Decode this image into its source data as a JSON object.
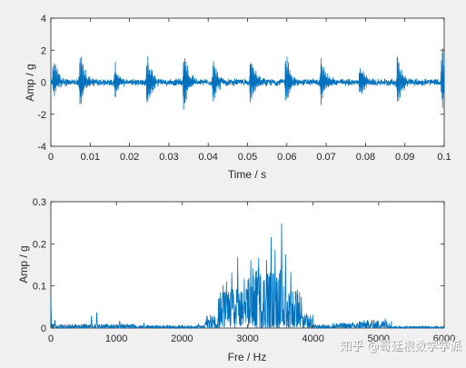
{
  "watermark": "知乎 @哥廷根数学学派",
  "colors": {
    "line": "#0072bd",
    "axis": "#262626",
    "plot_bg": "#ffffff",
    "figure_bg": "#f0f0f0"
  },
  "chart_data": [
    {
      "type": "line",
      "xlabel": "Time / s",
      "ylabel": "Amp / g",
      "xlim": [
        0,
        0.1
      ],
      "ylim": [
        -4,
        4
      ],
      "xticks": [
        0,
        0.01,
        0.02,
        0.03,
        0.04,
        0.05,
        0.06,
        0.07,
        0.08,
        0.09,
        0.1
      ],
      "xtick_labels": [
        "0",
        "0.01",
        "0.02",
        "0.03",
        "0.04",
        "0.05",
        "0.06",
        "0.07",
        "0.08",
        "0.09",
        "0.1"
      ],
      "yticks": [
        -4,
        -2,
        0,
        2,
        4
      ],
      "ytick_labels": [
        "-4",
        "-2",
        "0",
        "2",
        "4"
      ],
      "grid": false,
      "series": [
        {
          "impulse_times": [
            0.0007,
            0.0074,
            0.0163,
            0.0245,
            0.0338,
            0.0413,
            0.0508,
            0.0597,
            0.0687,
            0.0786,
            0.0881,
            0.0995
          ],
          "impulse_peaks": [
            2.2,
            2.6,
            1.4,
            2.4,
            2.5,
            2.0,
            2.3,
            2.3,
            2.1,
            1.5,
            2.1,
            3.0
          ],
          "impulse_troughs": [
            -1.0,
            -1.8,
            -1.2,
            -2.1,
            -2.0,
            -1.5,
            -1.9,
            -1.9,
            -1.7,
            -1.2,
            -1.7,
            -2.2
          ],
          "baseline_amplitude": 0.25
        }
      ]
    },
    {
      "type": "line",
      "xlabel": "Fre / Hz",
      "ylabel": "Amp / g",
      "xlim": [
        0,
        6000
      ],
      "ylim": [
        0,
        0.3
      ],
      "xticks": [
        0,
        1000,
        2000,
        3000,
        4000,
        5000,
        6000
      ],
      "xtick_labels": [
        "0",
        "1000",
        "2000",
        "3000",
        "4000",
        "5000",
        "6000"
      ],
      "yticks": [
        0,
        0.1,
        0.2,
        0.3
      ],
      "ytick_labels": [
        "0",
        "0.1",
        "0.2",
        "0.3"
      ],
      "grid": false,
      "series": [
        {
          "peaks": [
            [
              0,
              0.08
            ],
            [
              60,
              0.02
            ],
            [
              620,
              0.03
            ],
            [
              700,
              0.04
            ],
            [
              1050,
              0.02
            ],
            [
              1420,
              0.012
            ],
            [
              2250,
              0.012
            ],
            [
              2480,
              0.03
            ],
            [
              2630,
              0.11
            ],
            [
              2680,
              0.12
            ],
            [
              2760,
              0.15
            ],
            [
              2850,
              0.19
            ],
            [
              2950,
              0.12
            ],
            [
              3050,
              0.17
            ],
            [
              3170,
              0.19
            ],
            [
              3290,
              0.18
            ],
            [
              3360,
              0.23
            ],
            [
              3420,
              0.21
            ],
            [
              3520,
              0.25
            ],
            [
              3580,
              0.18
            ],
            [
              3660,
              0.14
            ],
            [
              3740,
              0.1
            ],
            [
              3820,
              0.08
            ],
            [
              3900,
              0.04
            ],
            [
              4000,
              0.02
            ],
            [
              4900,
              0.02
            ],
            [
              5100,
              0.025
            ]
          ],
          "bands": [
            [
              0,
              1300,
              0.006
            ],
            [
              1300,
              2350,
              0.004
            ],
            [
              2350,
              2550,
              0.02
            ],
            [
              2550,
              3000,
              0.06
            ],
            [
              3000,
              3550,
              0.09
            ],
            [
              3550,
              3800,
              0.06
            ],
            [
              3800,
              4000,
              0.02
            ],
            [
              4000,
              4300,
              0.005
            ],
            [
              4300,
              4700,
              0.008
            ],
            [
              4700,
              5200,
              0.012
            ],
            [
              5200,
              6000,
              0.003
            ]
          ]
        }
      ]
    }
  ]
}
